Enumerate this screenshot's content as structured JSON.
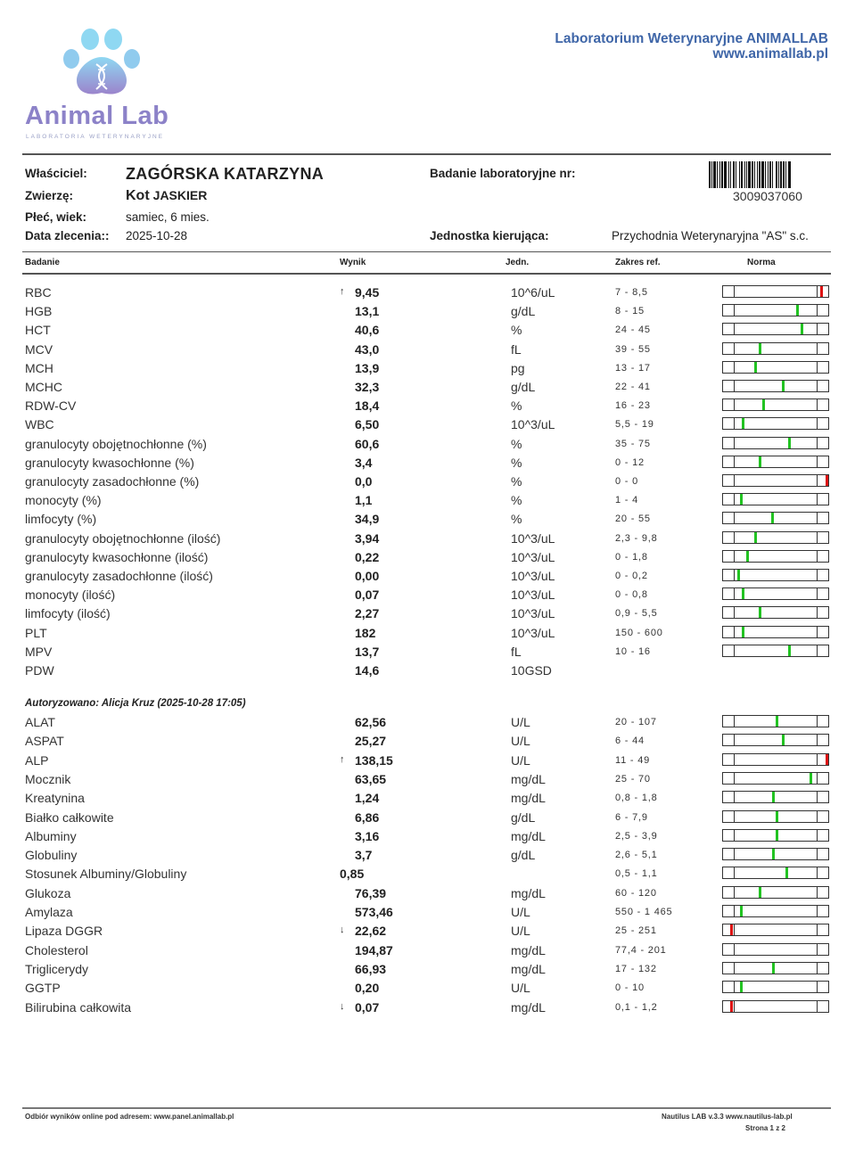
{
  "brand": {
    "name": "Animal Lab",
    "subtitle": "LABORATORIA  WETERYNARYJNE"
  },
  "lab": {
    "name": "Laboratorium Weterynaryjne ANIMALLAB",
    "url": "www.animallab.pl"
  },
  "patient": {
    "owner_label": "Właściciel:",
    "owner": "ZAGÓRSKA KATARZYNA",
    "animal_label": "Zwierzę:",
    "species": "Kot",
    "animal_name": "JASKIER",
    "sex_age_label": "Płeć, wiek:",
    "sex_age": "samiec,  6 mies.",
    "date_label": "Data zlecenia::",
    "date": "2025-10-28",
    "test_no_label": "Badanie laboratoryjne nr:",
    "barcode_number": "3009037060",
    "unit_label": "Jednostka kierująca:",
    "unit": "Przychodnia Weterynaryjna \"AS\" s.c."
  },
  "columns": {
    "test": "Badanie",
    "result": "Wynik",
    "unit": "Jedn.",
    "ref": "Zakres ref.",
    "norm": "Norma"
  },
  "colors": {
    "normal": "#22c322",
    "abnormal": "#dd1111"
  },
  "section1": [
    {
      "name": "RBC",
      "arrow": "↑",
      "value": "9,45",
      "unit": "10^6/uL",
      "range": "7 - 8,5",
      "norm": 0.93,
      "status": "abnormal"
    },
    {
      "name": "HGB",
      "value": "13,1",
      "unit": "g/dL",
      "range": "8 - 15",
      "norm": 0.7,
      "status": "normal"
    },
    {
      "name": "HCT",
      "value": "40,6",
      "unit": "%",
      "range": "24 - 45",
      "norm": 0.74,
      "status": "normal"
    },
    {
      "name": "MCV",
      "value": "43,0",
      "unit": "fL",
      "range": "39 - 55",
      "norm": 0.34,
      "status": "normal"
    },
    {
      "name": "MCH",
      "value": "13,9",
      "unit": "pg",
      "range": "13 - 17",
      "norm": 0.3,
      "status": "normal"
    },
    {
      "name": "MCHC",
      "value": "32,3",
      "unit": "g/dL",
      "range": "22 - 41",
      "norm": 0.56,
      "status": "normal"
    },
    {
      "name": "RDW-CV",
      "value": "18,4",
      "unit": "%",
      "range": "16 - 23",
      "norm": 0.38,
      "status": "normal"
    },
    {
      "name": "WBC",
      "value": "6,50",
      "unit": "10^3/uL",
      "range": "5,5 - 19",
      "norm": 0.18,
      "status": "normal"
    },
    {
      "name": "granulocyty obojętnochłonne (%)",
      "value": "60,6",
      "unit": "%",
      "range": "35 - 75",
      "norm": 0.62,
      "status": "normal"
    },
    {
      "name": "granulocyty kwasochłonne (%)",
      "value": "3,4",
      "unit": "%",
      "range": "0 - 12",
      "norm": 0.34,
      "status": "normal"
    },
    {
      "name": "granulocyty zasadochłonne (%)",
      "value": "0,0",
      "unit": "%",
      "range": "0 - 0",
      "norm": 0.98,
      "status": "abnormal"
    },
    {
      "name": "monocyty (%)",
      "value": "1,1",
      "unit": "%",
      "range": "1 - 4",
      "norm": 0.16,
      "status": "normal"
    },
    {
      "name": "limfocyty (%)",
      "value": "34,9",
      "unit": "%",
      "range": "20 - 55",
      "norm": 0.46,
      "status": "normal"
    },
    {
      "name": "granulocyty obojętnochłonne (ilość)",
      "value": "3,94",
      "unit": "10^3/uL",
      "range": "2,3 - 9,8",
      "norm": 0.3,
      "status": "normal"
    },
    {
      "name": "granulocyty kwasochłonne (ilość)",
      "value": "0,22",
      "unit": "10^3/uL",
      "range": "0 - 1,8",
      "norm": 0.22,
      "status": "normal"
    },
    {
      "name": "granulocyty zasadochłonne (ilość)",
      "value": "0,00",
      "unit": "10^3/uL",
      "range": "0 - 0,2",
      "norm": 0.14,
      "status": "normal"
    },
    {
      "name": "monocyty (ilość)",
      "value": "0,07",
      "unit": "10^3/uL",
      "range": "0 - 0,8",
      "norm": 0.18,
      "status": "normal"
    },
    {
      "name": "limfocyty (ilość)",
      "value": "2,27",
      "unit": "10^3/uL",
      "range": "0,9 - 5,5",
      "norm": 0.34,
      "status": "normal"
    },
    {
      "name": "PLT",
      "value": "182",
      "unit": "10^3/uL",
      "range": "150 - 600",
      "norm": 0.18,
      "status": "normal"
    },
    {
      "name": "MPV",
      "value": "13,7",
      "unit": "fL",
      "range": "10 - 16",
      "norm": 0.62,
      "status": "normal"
    },
    {
      "name": "PDW",
      "value": "14,6",
      "unit": "10GSD",
      "range": "",
      "norm": null,
      "status": ""
    }
  ],
  "authorization": "Autoryzowano: Alicja Kruz (2025-10-28 17:05)",
  "section2": [
    {
      "name": "ALAT",
      "value": "62,56",
      "unit": "U/L",
      "range": "20 - 107",
      "norm": 0.5,
      "status": "normal"
    },
    {
      "name": "ASPAT",
      "value": "25,27",
      "unit": "U/L",
      "range": "6 - 44",
      "norm": 0.56,
      "status": "normal"
    },
    {
      "name": "ALP",
      "arrow": "↑",
      "value": "138,15",
      "unit": "U/L",
      "range": "11 - 49",
      "norm": 0.98,
      "status": "abnormal"
    },
    {
      "name": "Mocznik",
      "value": "63,65",
      "unit": "mg/dL",
      "range": "25 - 70",
      "norm": 0.83,
      "status": "normal"
    },
    {
      "name": "Kreatynina",
      "value": "1,24",
      "unit": "mg/dL",
      "range": "0,8 - 1,8",
      "norm": 0.47,
      "status": "normal"
    },
    {
      "name": "Białko całkowite",
      "value": "6,86",
      "unit": "g/dL",
      "range": "6 - 7,9",
      "norm": 0.5,
      "status": "normal"
    },
    {
      "name": "Albuminy",
      "value": "3,16",
      "unit": "mg/dL",
      "range": "2,5 - 3,9",
      "norm": 0.5,
      "status": "normal"
    },
    {
      "name": "Globuliny",
      "value": "3,7",
      "unit": "g/dL",
      "range": "2,6 - 5,1",
      "norm": 0.47,
      "status": "normal"
    },
    {
      "name": "Stosunek Albuminy/Globuliny",
      "value": "0,85",
      "unit": "",
      "range": "0,5 - 1,1",
      "norm": 0.6,
      "status": "normal",
      "value_left": true
    },
    {
      "name": "Glukoza",
      "value": "76,39",
      "unit": "mg/dL",
      "range": "60 - 120",
      "norm": 0.34,
      "status": "normal"
    },
    {
      "name": "Amylaza",
      "value": "573,46",
      "unit": "U/L",
      "range": "550 - 1 465",
      "norm": 0.16,
      "status": "normal"
    },
    {
      "name": "Lipaza DGGR",
      "arrow": "↓",
      "value": "22,62",
      "unit": "U/L",
      "range": "25 - 251",
      "norm": 0.07,
      "status": "abnormal"
    },
    {
      "name": "Cholesterol",
      "value": "194,87",
      "unit": "mg/dL",
      "range": "77,4 - 201",
      "norm": null,
      "status": ""
    },
    {
      "name": "Triglicerydy",
      "value": "66,93",
      "unit": "mg/dL",
      "range": "17 - 132",
      "norm": 0.47,
      "status": "normal"
    },
    {
      "name": "GGTP",
      "value": "0,20",
      "unit": "U/L",
      "range": "0 - 10",
      "norm": 0.16,
      "status": "normal"
    },
    {
      "name": "Bilirubina całkowita",
      "arrow": "↓",
      "value": "0,07",
      "unit": "mg/dL",
      "range": "0,1 - 1,2",
      "norm": 0.07,
      "status": "abnormal"
    }
  ],
  "footer": {
    "online": "Odbiór wyników online pod adresem: www.panel.animallab.pl",
    "software": "Nautilus LAB v.3.3   www.nautilus-lab.pl",
    "page": "Strona 1 z 2"
  }
}
